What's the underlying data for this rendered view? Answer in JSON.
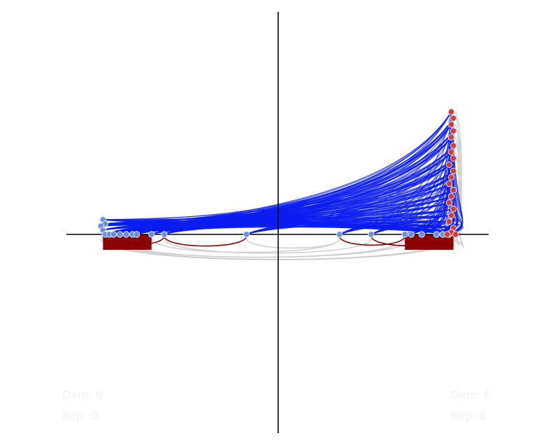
{
  "chart_data": {
    "type": "scatter",
    "description_free": true,
    "xlim": [
      -1,
      1
    ],
    "ylim": [
      -1,
      1
    ],
    "axes": "centered-cross",
    "grid": false,
    "colors": {
      "dem_point": "#6a8fe0",
      "rep_point": "#c94040",
      "blue_arc": "#0a1ef0",
      "red_arc": "#8b0000",
      "gray_arc": "#cccccc",
      "axis": "#000000",
      "counter_text": "#eef0fb"
    },
    "dem_points": [
      {
        "x": -0.83,
        "y": 0.07
      },
      {
        "x": -0.82,
        "y": 0.05
      },
      {
        "x": -0.84,
        "y": 0.04
      },
      {
        "x": -0.83,
        "y": 0.02
      },
      {
        "x": -0.82,
        "y": 0.0
      },
      {
        "x": -0.8,
        "y": 0.0
      },
      {
        "x": -0.78,
        "y": 0.0
      },
      {
        "x": -0.75,
        "y": 0.0
      },
      {
        "x": -0.72,
        "y": 0.0
      },
      {
        "x": -0.69,
        "y": 0.0
      },
      {
        "x": -0.67,
        "y": 0.0
      },
      {
        "x": -0.6,
        "y": 0.0
      },
      {
        "x": -0.54,
        "y": 0.0
      },
      {
        "x": -0.15,
        "y": 0.0
      },
      {
        "x": 0.29,
        "y": 0.0
      },
      {
        "x": 0.44,
        "y": 0.0
      },
      {
        "x": 0.6,
        "y": 0.0
      },
      {
        "x": 0.63,
        "y": 0.0
      },
      {
        "x": 0.68,
        "y": 0.0
      },
      {
        "x": 0.75,
        "y": 0.0
      },
      {
        "x": 0.78,
        "y": 0.0
      },
      {
        "x": 0.81,
        "y": 0.0
      }
    ],
    "rep_points": [
      {
        "x": 0.82,
        "y": 0.58
      },
      {
        "x": 0.83,
        "y": 0.55
      },
      {
        "x": 0.82,
        "y": 0.52
      },
      {
        "x": 0.83,
        "y": 0.49
      },
      {
        "x": 0.82,
        "y": 0.46
      },
      {
        "x": 0.83,
        "y": 0.42
      },
      {
        "x": 0.82,
        "y": 0.39
      },
      {
        "x": 0.83,
        "y": 0.36
      },
      {
        "x": 0.81,
        "y": 0.33
      },
      {
        "x": 0.83,
        "y": 0.3
      },
      {
        "x": 0.82,
        "y": 0.27
      },
      {
        "x": 0.81,
        "y": 0.24
      },
      {
        "x": 0.83,
        "y": 0.21
      },
      {
        "x": 0.82,
        "y": 0.18
      },
      {
        "x": 0.81,
        "y": 0.15
      },
      {
        "x": 0.83,
        "y": 0.12
      },
      {
        "x": 0.82,
        "y": 0.09
      },
      {
        "x": 0.81,
        "y": 0.06
      },
      {
        "x": 0.83,
        "y": 0.03
      },
      {
        "x": 0.82,
        "y": 0.01
      },
      {
        "x": 0.8,
        "y": 0.0
      },
      {
        "x": 0.84,
        "y": 0.0
      }
    ],
    "red_arc_pairs": [
      [
        -0.83,
        -0.54
      ],
      [
        -0.83,
        -0.6
      ],
      [
        -0.83,
        -0.67
      ],
      [
        -0.83,
        -0.69
      ],
      [
        -0.83,
        -0.72
      ],
      [
        -0.83,
        -0.75
      ],
      [
        -0.54,
        -0.15
      ],
      [
        0.29,
        0.6
      ],
      [
        0.44,
        0.82
      ],
      [
        0.6,
        0.82
      ],
      [
        0.63,
        0.82
      ],
      [
        0.68,
        0.82
      ],
      [
        0.75,
        0.82
      ]
    ],
    "gray_arc_pairs": [
      [
        -0.83,
        0.82
      ],
      [
        -0.84,
        0.83
      ],
      [
        -0.82,
        0.81
      ],
      [
        -0.15,
        0.29
      ],
      [
        -0.54,
        0.44
      ],
      [
        -0.6,
        0.29
      ],
      [
        -0.8,
        0.6
      ],
      [
        -0.78,
        0.63
      ]
    ]
  },
  "counters": {
    "left": {
      "dem_label": "Dem:",
      "dem_value": "0",
      "rep_label": "Rep:",
      "rep_value": "0"
    },
    "right": {
      "dem_label": "Dem:",
      "dem_value": "0",
      "rep_label": "Rep:",
      "rep_value": "0"
    }
  }
}
